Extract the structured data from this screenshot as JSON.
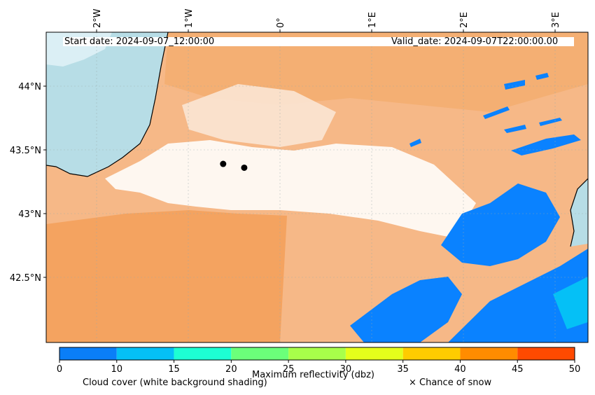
{
  "map": {
    "start_date": "Start date: 2024-09-07_12:00:00",
    "valid_date": "Valid_date: 2024-09-07T22:00:00.00",
    "lon_labels": [
      "2°W",
      "1°W",
      "0°",
      "1°E",
      "2°E",
      "3°E"
    ],
    "lat_labels": [
      "44°N",
      "43.5°N",
      "43°N",
      "42.5°N"
    ],
    "points": [
      {
        "lon": -0.62,
        "lat": 43.39
      },
      {
        "lon": -0.39,
        "lat": 43.36
      }
    ],
    "colors": {
      "sea": "#b7dde6",
      "cloud_low": "#f3a45e",
      "cloud_mid": "#f6c49a",
      "reflectivity_low": "#0a82ff"
    }
  },
  "colorbar": {
    "title": "Maximum reflectivity (dbz)",
    "ticks": [
      "0",
      "10",
      "15",
      "20",
      "25",
      "30",
      "35",
      "40",
      "45",
      "50"
    ],
    "colors": [
      "#0a7ef8",
      "#05c0f6",
      "#1dffd3",
      "#6bff7a",
      "#a8ff4a",
      "#e4ff1b",
      "#ffcc00",
      "#ff8c00",
      "#ff4a00"
    ]
  },
  "footer": {
    "cloud_cover": "Cloud cover (white background shading)",
    "snow": "× Chance of snow"
  }
}
